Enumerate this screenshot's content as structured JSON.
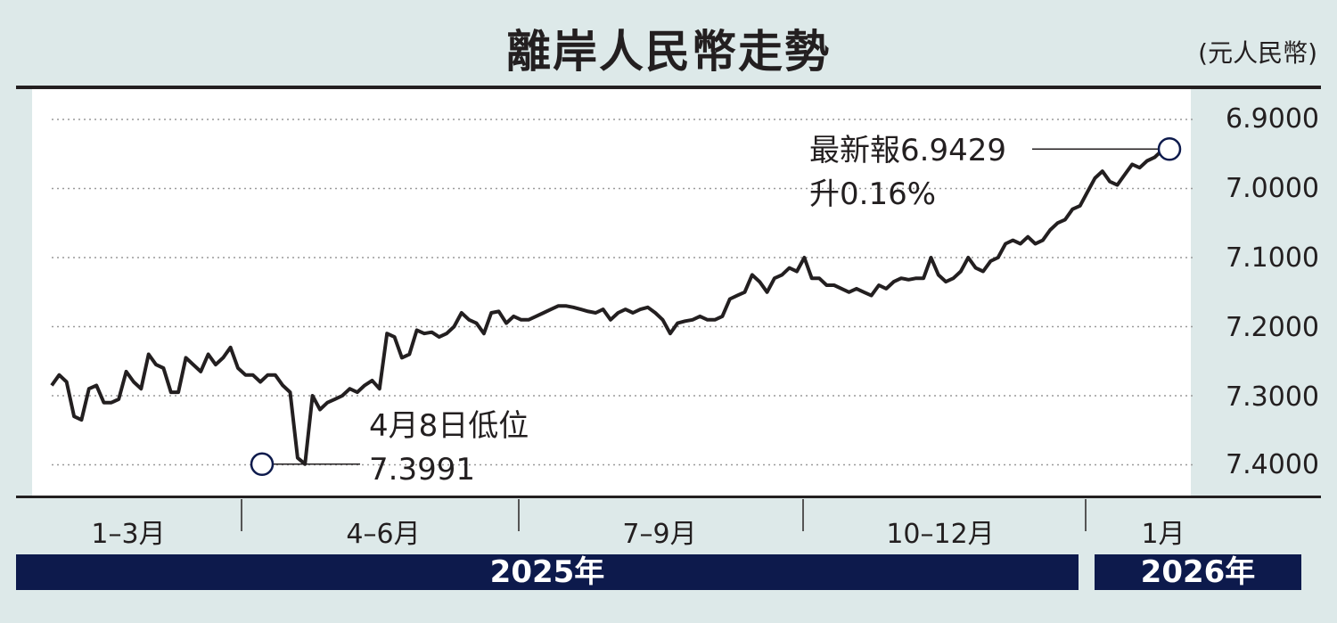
{
  "header": {
    "title": "離岸人民幣走勢",
    "unit": "(元人民幣)"
  },
  "x_axis": {
    "quarters": [
      "1–3月",
      "4–6月",
      "7–9月",
      "10–12月",
      "1月"
    ],
    "years": [
      "2025年",
      "2026年"
    ]
  },
  "annotations": {
    "low_label": "4月8日低位",
    "low_value": "7.3991",
    "latest_label": "最新報6.9429",
    "latest_change": "升0.16%"
  },
  "colors": {
    "background": "#dde9e9",
    "line": "#231f20",
    "year_bar": "#0d1a4c"
  },
  "chart_data": {
    "type": "line",
    "title": "離岸人民幣走勢",
    "ylabel": "(元人民幣)",
    "y_inverted": true,
    "ylim": [
      6.88,
      7.43
    ],
    "yticks": [
      "6.9000",
      "7.0000",
      "7.1000",
      "7.2000",
      "7.3000",
      "7.4000"
    ],
    "ytick_values": [
      6.9,
      7.0,
      7.1,
      7.2,
      7.3,
      7.4
    ],
    "x_start": "2025-01-02",
    "grid": true,
    "values": [
      7.285,
      7.27,
      7.28,
      7.33,
      7.335,
      7.29,
      7.285,
      7.31,
      7.31,
      7.305,
      7.265,
      7.28,
      7.29,
      7.24,
      7.255,
      7.26,
      7.295,
      7.295,
      7.245,
      7.255,
      7.265,
      7.24,
      7.255,
      7.245,
      7.23,
      7.26,
      7.27,
      7.27,
      7.28,
      7.27,
      7.27,
      7.285,
      7.295,
      7.39,
      7.399,
      7.3,
      7.32,
      7.31,
      7.305,
      7.3,
      7.29,
      7.295,
      7.285,
      7.278,
      7.29,
      7.21,
      7.215,
      7.245,
      7.24,
      7.205,
      7.21,
      7.208,
      7.215,
      7.21,
      7.2,
      7.18,
      7.19,
      7.195,
      7.21,
      7.18,
      7.178,
      7.195,
      7.185,
      7.19,
      7.19,
      7.185,
      7.18,
      7.175,
      7.17,
      7.17,
      7.172,
      7.175,
      7.178,
      7.18,
      7.175,
      7.19,
      7.18,
      7.175,
      7.18,
      7.175,
      7.172,
      7.18,
      7.19,
      7.21,
      7.195,
      7.192,
      7.19,
      7.185,
      7.19,
      7.19,
      7.185,
      7.16,
      7.155,
      7.15,
      7.125,
      7.135,
      7.15,
      7.13,
      7.125,
      7.115,
      7.12,
      7.1,
      7.13,
      7.13,
      7.14,
      7.14,
      7.145,
      7.15,
      7.145,
      7.15,
      7.155,
      7.14,
      7.145,
      7.135,
      7.13,
      7.132,
      7.13,
      7.13,
      7.1,
      7.125,
      7.135,
      7.13,
      7.12,
      7.1,
      7.115,
      7.12,
      7.105,
      7.1,
      7.08,
      7.075,
      7.08,
      7.07,
      7.08,
      7.075,
      7.06,
      7.05,
      7.045,
      7.03,
      7.025,
      7.005,
      6.985,
      6.975,
      6.99,
      6.995,
      6.98,
      6.965,
      6.97,
      6.96,
      6.955,
      6.945,
      6.943
    ],
    "low": {
      "date": "2025-04-08",
      "value": 7.3991
    },
    "latest": {
      "value": 6.9429,
      "change": "升0.16%"
    }
  }
}
